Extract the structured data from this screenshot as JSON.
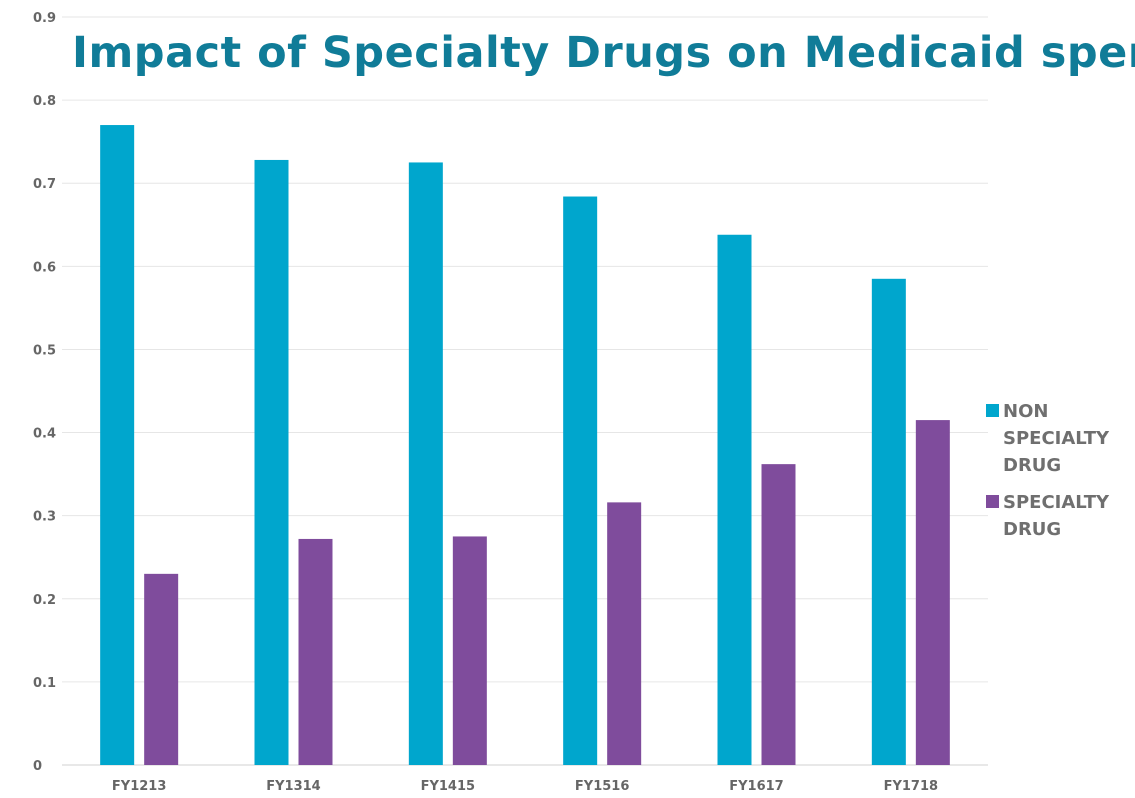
{
  "chart_data": {
    "type": "bar",
    "title": "Impact of Specialty Drugs on Medicaid spend",
    "xlabel": "",
    "ylabel": "",
    "categories": [
      "FY1213",
      "FY1314",
      "FY1415",
      "FY1516",
      "FY1617",
      "FY1718"
    ],
    "series": [
      {
        "name": "NON SPECIALTY DRUG",
        "color": "#00a6cd",
        "values": [
          0.77,
          0.728,
          0.725,
          0.684,
          0.638,
          0.585
        ]
      },
      {
        "name": "SPECIALTY DRUG",
        "color": "#7f4c9c",
        "values": [
          0.23,
          0.272,
          0.275,
          0.316,
          0.362,
          0.415
        ]
      }
    ],
    "ylim": [
      0,
      0.9
    ],
    "yticks": [
      "0",
      "0.1",
      "0.2",
      "0.3",
      "0.4",
      "0.5",
      "0.6",
      "0.7",
      "0.8",
      "0.9"
    ],
    "grid": true,
    "legend_position": "right"
  }
}
